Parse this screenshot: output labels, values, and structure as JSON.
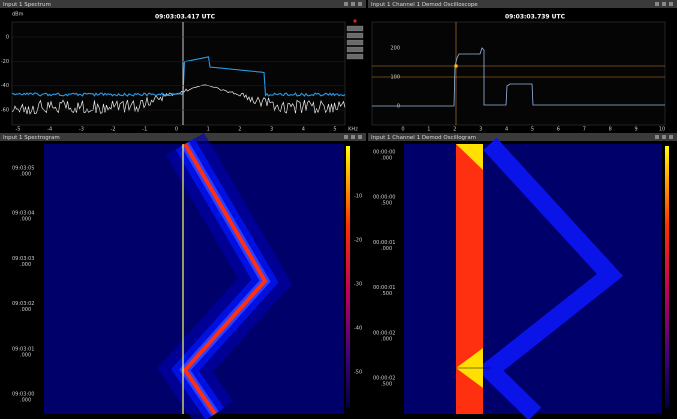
{
  "spectrum": {
    "title": "Input 1 Spectrum",
    "timestamp": "09:03:03.417 UTC",
    "y_unit": "dBm",
    "y_ticks": [
      "0",
      "-20",
      "-40",
      "-60"
    ],
    "x_ticks": [
      "-5",
      "-4",
      "-3",
      "-2",
      "-1",
      "0",
      "1",
      "2",
      "3",
      "4",
      "5"
    ],
    "x_unit": "KHz"
  },
  "oscilloscope": {
    "title": "Input 1 Channel 1 Demod Oscilloscope",
    "timestamp": "09:03:03.739 UTC",
    "y_ticks": [
      "200",
      "100",
      "0"
    ],
    "x_ticks": [
      "0",
      "1",
      "2",
      "3",
      "4",
      "5",
      "6",
      "7",
      "8",
      "9",
      "10"
    ]
  },
  "spectrogram": {
    "title": "Input 1 Spectrogram",
    "time_labels": [
      {
        "time": "09:03:05",
        "ms": ".000"
      },
      {
        "time": "09:03:04",
        "ms": ".000"
      },
      {
        "time": "09:03:03",
        "ms": ".000"
      },
      {
        "time": "09:03:02",
        "ms": ".000"
      },
      {
        "time": "09:03:01",
        "ms": ".000"
      },
      {
        "time": "09:03:00",
        "ms": ".000"
      }
    ],
    "scale_ticks": [
      "-10",
      "-20",
      "-30",
      "-40",
      "-50"
    ]
  },
  "oscillogram": {
    "title": "Input 1 Channel 1 Demod Oscillogram",
    "time_labels": [
      {
        "time": "00:00:00",
        "ms": ".000"
      },
      {
        "time": "00:00:00",
        "ms": ".500"
      },
      {
        "time": "00:00:01",
        "ms": ".000"
      },
      {
        "time": "00:00:01",
        "ms": ".500"
      },
      {
        "time": "00:00:02",
        "ms": ".000"
      },
      {
        "time": "00:00:02",
        "ms": ".500"
      }
    ]
  }
}
